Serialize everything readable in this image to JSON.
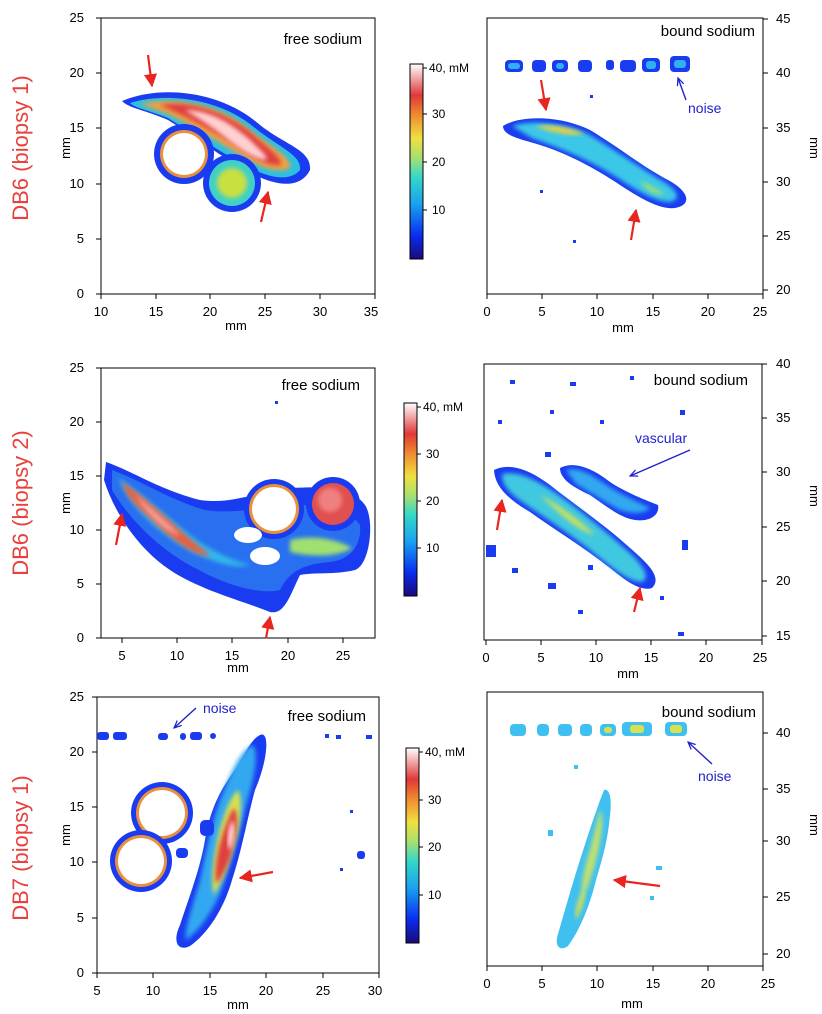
{
  "rows": [
    {
      "label": "DB6 (biopsy 1)",
      "left": {
        "title": "free sodium",
        "xlabel": "mm",
        "ylabel": "mm",
        "xticks": [
          "10",
          "15",
          "20",
          "25",
          "30",
          "35"
        ],
        "yticks": [
          "0",
          "5",
          "10",
          "15",
          "20",
          "25"
        ]
      },
      "right": {
        "title": "bound sodium",
        "xlabel": "mm",
        "ylabel": "mm",
        "xticks": [
          "0",
          "5",
          "10",
          "15",
          "20",
          "25"
        ],
        "yticks": [
          "20",
          "25",
          "30",
          "35",
          "40",
          "45"
        ],
        "annotation": "noise"
      },
      "colorbar": {
        "labels": [
          "40, mM",
          "30",
          "20",
          "10"
        ]
      }
    },
    {
      "label": "DB6 (biopsy 2)",
      "left": {
        "title": "free sodium",
        "xlabel": "mm",
        "ylabel": "mm",
        "xticks": [
          "5",
          "10",
          "15",
          "20",
          "25"
        ],
        "yticks": [
          "0",
          "5",
          "10",
          "15",
          "20",
          "25"
        ]
      },
      "right": {
        "title": "bound sodium",
        "xlabel": "mm",
        "ylabel": "mm",
        "xticks": [
          "0",
          "5",
          "10",
          "15",
          "20",
          "25"
        ],
        "yticks": [
          "15",
          "20",
          "25",
          "30",
          "35",
          "40"
        ],
        "annotation": "vascular"
      },
      "colorbar": {
        "labels": [
          "40, mM",
          "30",
          "20",
          "10"
        ]
      }
    },
    {
      "label": "DB7 (biopsy 1)",
      "left": {
        "title": "free sodium",
        "xlabel": "mm",
        "ylabel": "mm",
        "xticks": [
          "5",
          "10",
          "15",
          "20",
          "25",
          "30"
        ],
        "yticks": [
          "0",
          "5",
          "10",
          "15",
          "20",
          "25"
        ],
        "annotation": "noise"
      },
      "right": {
        "title": "bound sodium",
        "xlabel": "mm",
        "ylabel": "mm",
        "xticks": [
          "0",
          "5",
          "10",
          "15",
          "20",
          "25"
        ],
        "yticks": [
          "20",
          "25",
          "30",
          "35",
          "40"
        ],
        "annotation": "noise"
      },
      "colorbar": {
        "labels": [
          "40, mM",
          "30",
          "20",
          "10"
        ]
      }
    }
  ],
  "colors": {
    "row_label": "#e8413c",
    "arrow": "#e8261f",
    "annotation": "#2222cc",
    "axis": "#000000"
  }
}
